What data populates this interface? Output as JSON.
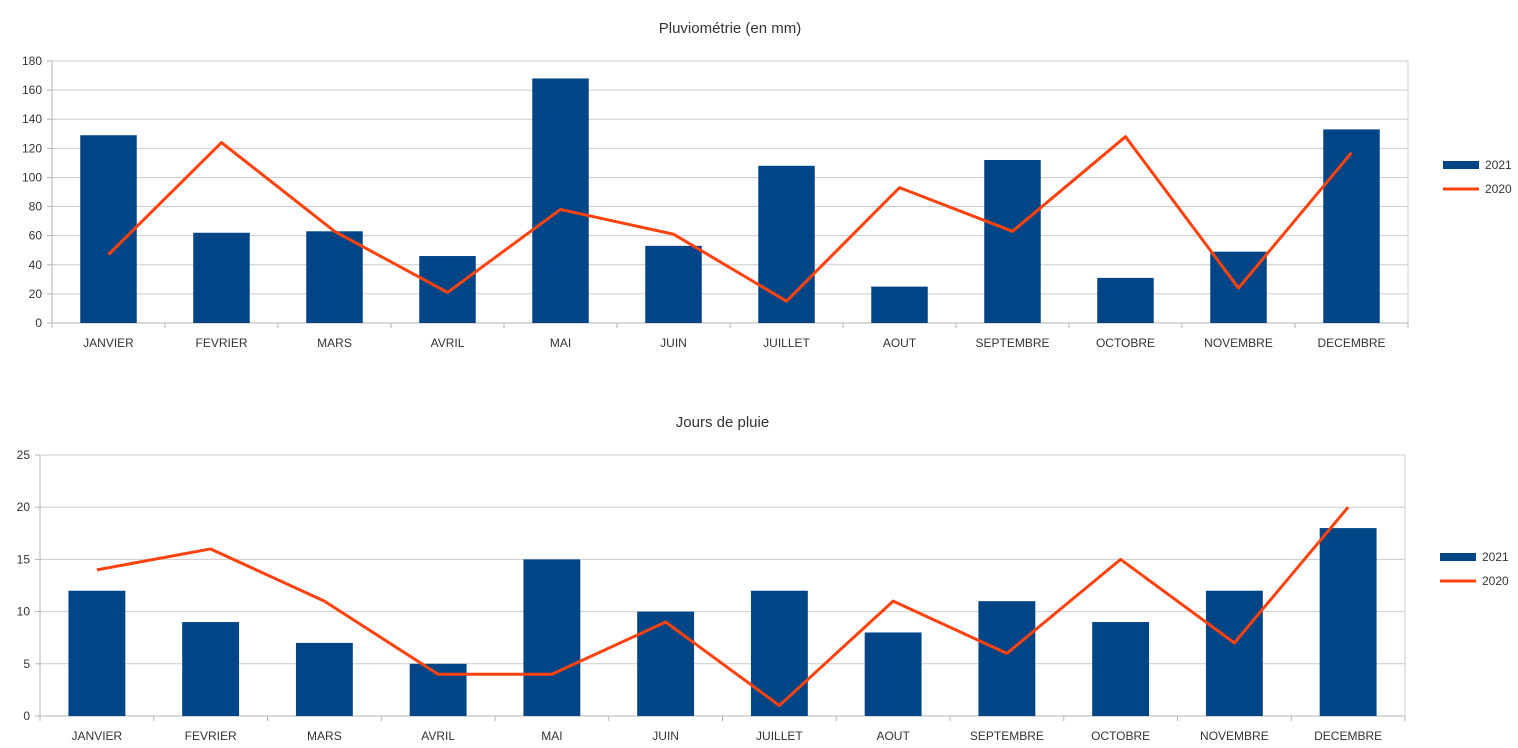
{
  "colors": {
    "series_2021": "#004586",
    "series_2020": "#ff420e"
  },
  "chart_data": [
    {
      "type": "bar",
      "title": "Pluviométrie (en mm)",
      "xlabel": "",
      "ylabel": "",
      "categories": [
        "JANVIER",
        "FEVRIER",
        "MARS",
        "AVRIL",
        "MAI",
        "JUIN",
        "JUILLET",
        "AOUT",
        "SEPTEMBRE",
        "OCTOBRE",
        "NOVEMBRE",
        "DECEMBRE"
      ],
      "series": [
        {
          "name": "2021",
          "type": "bar",
          "values": [
            129,
            62,
            63,
            46,
            168,
            53,
            108,
            25,
            112,
            31,
            49,
            133
          ]
        },
        {
          "name": "2020",
          "type": "line",
          "values": [
            47,
            124,
            63,
            21,
            78,
            61,
            15,
            93,
            63,
            128,
            24,
            117
          ]
        }
      ],
      "ylim": [
        0,
        180
      ],
      "yticks": [
        "0",
        "20",
        "40",
        "60",
        "80",
        "100",
        "120",
        "140",
        "160",
        "180"
      ],
      "grid": true,
      "legend": "right"
    },
    {
      "type": "bar",
      "title": "Jours de pluie",
      "xlabel": "",
      "ylabel": "",
      "categories": [
        "JANVIER",
        "FEVRIER",
        "MARS",
        "AVRIL",
        "MAI",
        "JUIN",
        "JUILLET",
        "AOUT",
        "SEPTEMBRE",
        "OCTOBRE",
        "NOVEMBRE",
        "DECEMBRE"
      ],
      "series": [
        {
          "name": "2021",
          "type": "bar",
          "values": [
            12,
            9,
            7,
            5,
            15,
            10,
            12,
            8,
            11,
            9,
            12,
            18
          ]
        },
        {
          "name": "2020",
          "type": "line",
          "values": [
            14,
            16,
            11,
            4,
            4,
            9,
            1,
            11,
            6,
            15,
            7,
            20
          ]
        }
      ],
      "ylim": [
        0,
        25
      ],
      "yticks": [
        "0",
        "5",
        "10",
        "15",
        "20",
        "25"
      ],
      "grid": true,
      "legend": "right"
    }
  ]
}
